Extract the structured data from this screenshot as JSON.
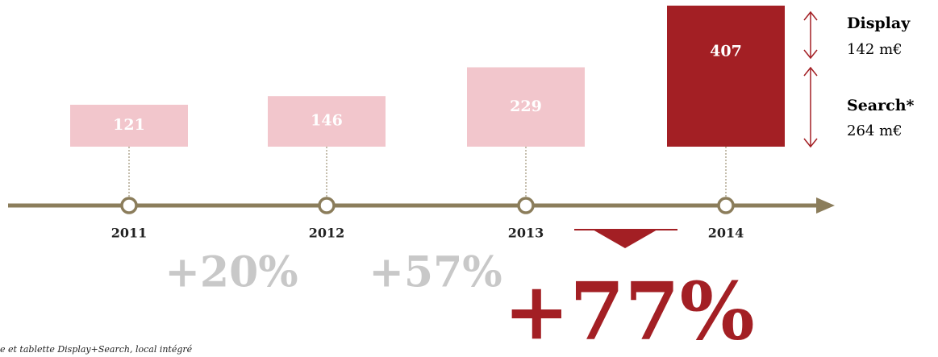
{
  "chart_data": {
    "type": "timeline",
    "categories": [
      "2011",
      "2012",
      "2013",
      "2014"
    ],
    "values": [
      121,
      146,
      229,
      407
    ],
    "colors": [
      "#f2c6cc",
      "#f2c6cc",
      "#f2c6cc",
      "#a31f24"
    ],
    "growth": [
      "+20%",
      "+57%",
      "+77%"
    ],
    "breakdown": [
      {
        "name": "Display",
        "text": "142 m€"
      },
      {
        "name": "Search*",
        "text": "264 m€"
      }
    ],
    "footnote": "e et tablette Display+Search, local intégré"
  }
}
